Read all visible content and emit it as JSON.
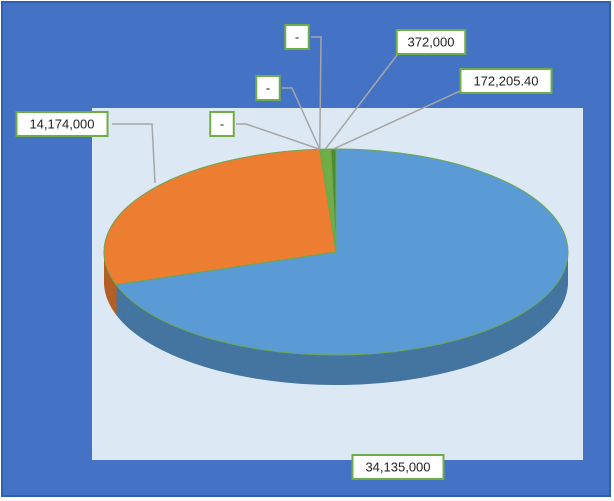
{
  "chart_data": {
    "type": "pie",
    "values": [
      34135000,
      14174000,
      0,
      0,
      0,
      372000,
      172205.4
    ],
    "value_labels": [
      "34,135,000",
      "14,174,000",
      "-",
      "-",
      "-",
      "372,000",
      "172,205.40"
    ],
    "colors": [
      "#5b9bd5",
      "#ed7d31",
      "#a5a5a5",
      "#ffc000",
      "#4472c4",
      "#70ad47",
      "#4e8a2f"
    ]
  }
}
